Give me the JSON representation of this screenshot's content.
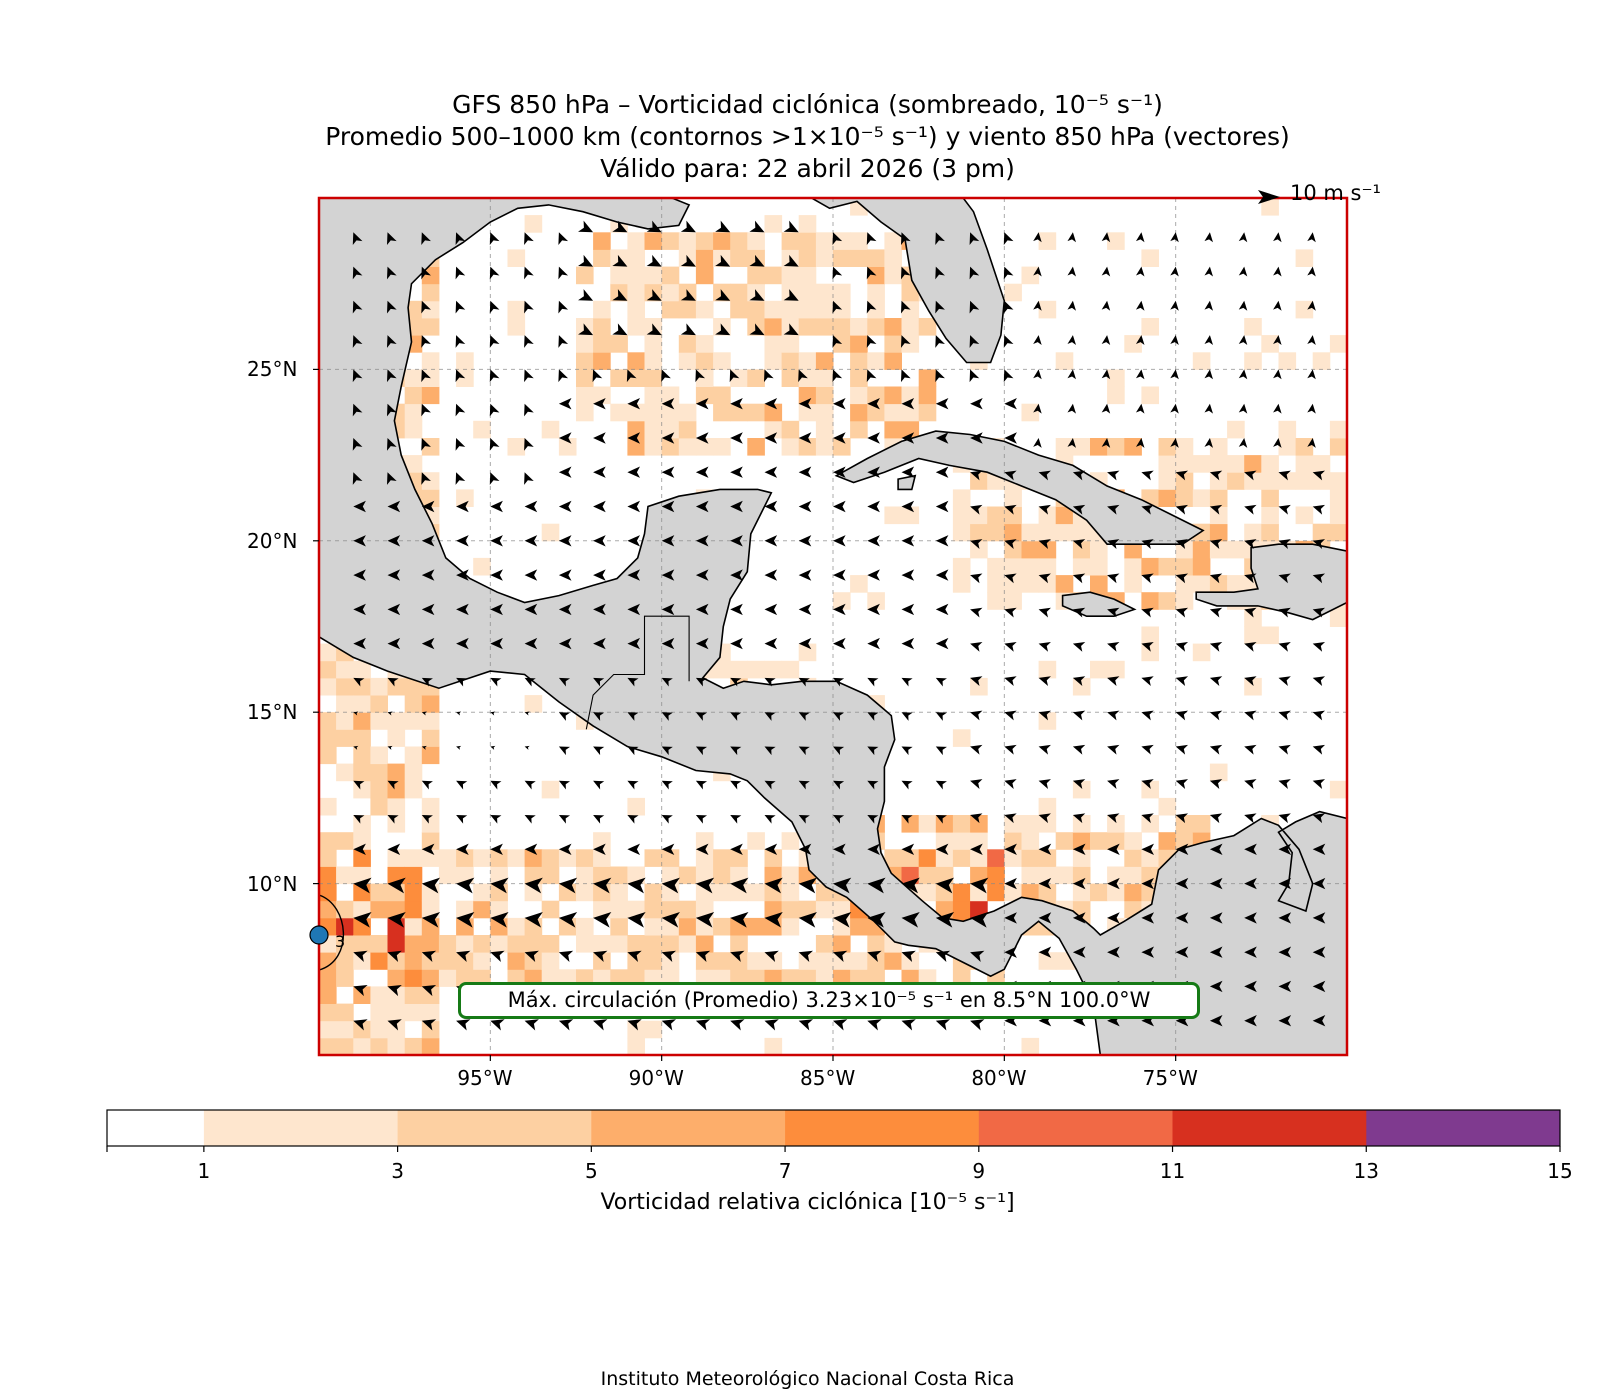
{
  "title": {
    "line1": "GFS 850 hPa – Vorticidad ciclónica (sombreado, 10⁻⁵ s⁻¹)",
    "line2": "Promedio 500–1000 km (contornos >1×10⁻⁵ s⁻¹) y viento 850 hPa (vectores)",
    "line3": "Válido para: 22 abril 2026 (3 pm)"
  },
  "map": {
    "extent": {
      "lon_min": -100,
      "lon_max": -70,
      "lat_min": 5,
      "lat_max": 30
    },
    "lat_ticks": [
      {
        "value": 25,
        "label": "25°N"
      },
      {
        "value": 20,
        "label": "20°N"
      },
      {
        "value": 15,
        "label": "15°N"
      },
      {
        "value": 10,
        "label": "10°N"
      }
    ],
    "lon_ticks": [
      {
        "value": -95,
        "label": "95°W"
      },
      {
        "value": -90,
        "label": "90°W"
      },
      {
        "value": -85,
        "label": "85°W"
      },
      {
        "value": -80,
        "label": "80°W"
      },
      {
        "value": -75,
        "label": "75°W"
      }
    ],
    "land_color": "#d3d3d3",
    "frame_color": "#cc0000",
    "reference_vector": {
      "speed": 10,
      "label": "10 m s⁻¹"
    },
    "contour_label": "3",
    "max_marker": {
      "lat": 8.5,
      "lon": -100.0,
      "color": "#1f77b4"
    }
  },
  "annotation": {
    "text": "Máx. circulación (Promedio) 3.23×10⁻⁵ s⁻¹ en 8.5°N 100.0°W",
    "border_color": "#167a16"
  },
  "colorbar": {
    "title": "Vorticidad relativa ciclónica [10⁻⁵ s⁻¹]",
    "bins": [
      {
        "from": 0,
        "to": 1,
        "color": "#ffffff"
      },
      {
        "from": 1,
        "to": 3,
        "color": "#fee6ce"
      },
      {
        "from": 3,
        "to": 5,
        "color": "#fdd0a2"
      },
      {
        "from": 5,
        "to": 7,
        "color": "#fdae6b"
      },
      {
        "from": 7,
        "to": 9,
        "color": "#fd8d3c"
      },
      {
        "from": 9,
        "to": 11,
        "color": "#f16945"
      },
      {
        "from": 11,
        "to": 13,
        "color": "#d7301f"
      },
      {
        "from": 13,
        "to": 15,
        "color": "#7f3a8f"
      }
    ],
    "tick_labels": [
      "1",
      "3",
      "5",
      "7",
      "9",
      "11",
      "13",
      "15"
    ]
  },
  "footer": "Instituto Meteorológico Nacional Costa Rica"
}
